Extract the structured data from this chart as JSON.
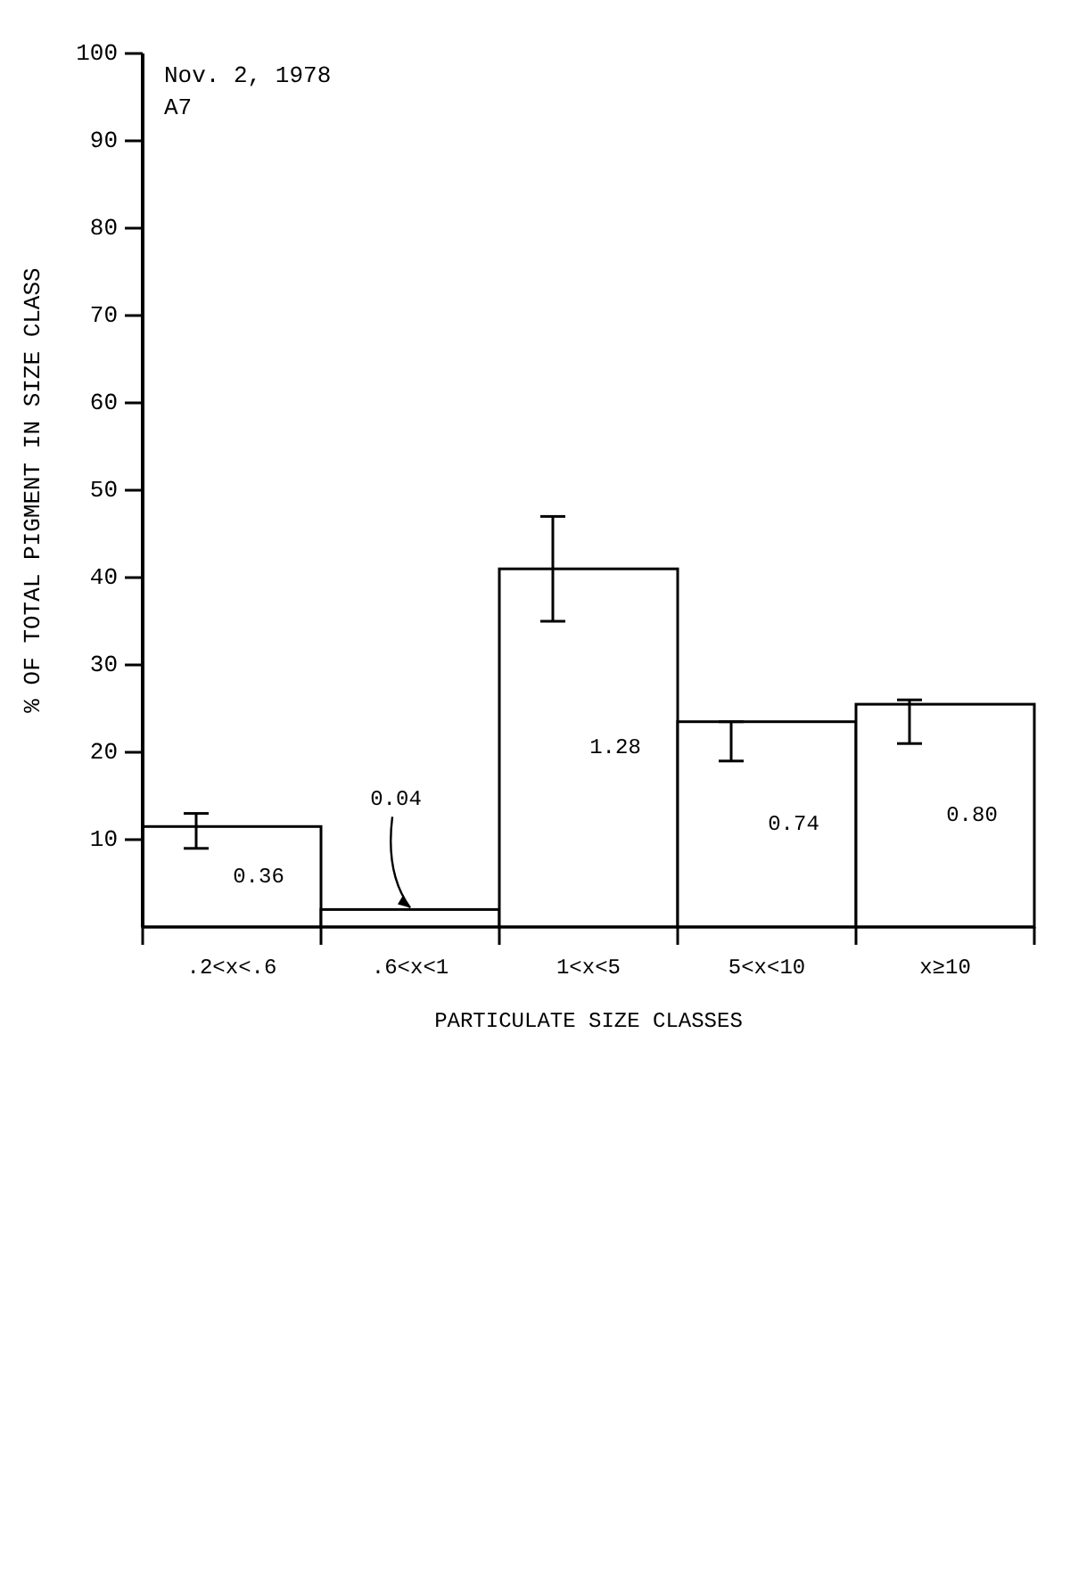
{
  "chart_data": {
    "type": "bar",
    "title": "Nov. 2, 1978",
    "subtitle": "A7",
    "xlabel": "PARTICULATE SIZE CLASSES",
    "ylabel": "% OF TOTAL PIGMENT IN SIZE CLASS",
    "categories": [
      ".2<x<.6",
      ".6<x<1",
      "1<x<5",
      "5<x<10",
      "x≥10"
    ],
    "values": [
      11.5,
      2,
      41,
      23.5,
      25.5
    ],
    "errors": [
      [
        9,
        13
      ],
      null,
      [
        35,
        47
      ],
      [
        19,
        23.5
      ],
      [
        21,
        26
      ]
    ],
    "color": "#ffffff",
    "ylim": [
      0,
      100
    ],
    "yticks": [
      10,
      20,
      30,
      40,
      50,
      60,
      70,
      80,
      90,
      100
    ],
    "annotations": [
      "0.36",
      {
        "text": "0.04",
        "x": ".6<x<1",
        "y": 2
      },
      "1.28",
      "0.74",
      "0.80"
    ]
  }
}
